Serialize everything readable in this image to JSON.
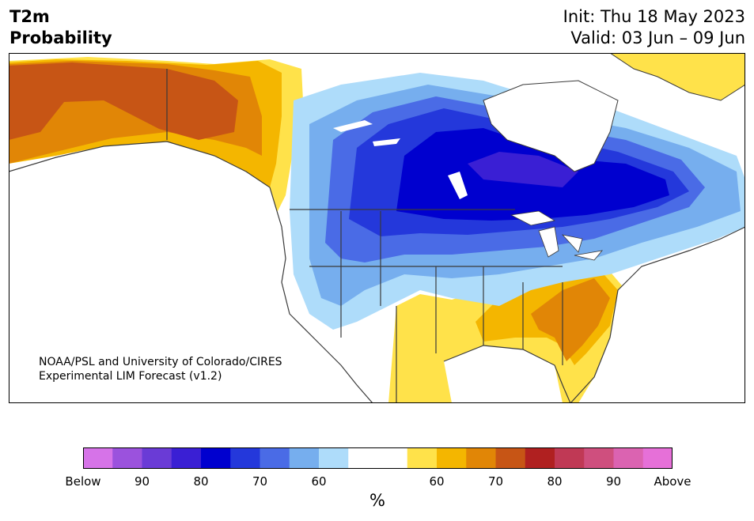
{
  "title": {
    "variable": "T2m",
    "quantity": "Probability"
  },
  "init_label": "Init: Thu 18 May 2023",
  "valid_label": "Valid: 03 Jun – 09 Jun",
  "credit": {
    "line1": "NOAA/PSL and University of Colorado/CIRES",
    "line2": "Experimental LIM Forecast (v1.2)"
  },
  "colorbar": {
    "colors": [
      "#d673e8",
      "#9b52dd",
      "#6a3bd6",
      "#3a1fd4",
      "#0000cf",
      "#2438db",
      "#4a6be6",
      "#76aeee",
      "#aedcfa",
      "#ffffff",
      "#ffffff",
      "#ffe24a",
      "#f4b600",
      "#e18606",
      "#c75515",
      "#b02020",
      "#c03955",
      "#cf4f7e",
      "#db63b1",
      "#e670d8"
    ],
    "tick_labels": [
      "Below",
      "90",
      "80",
      "70",
      "60",
      "60",
      "70",
      "80",
      "90",
      "Above"
    ],
    "unit": "%"
  },
  "map_colors": {
    "land": "#ffffff",
    "water": "#ffffff",
    "outline": "#3a3a3a"
  }
}
